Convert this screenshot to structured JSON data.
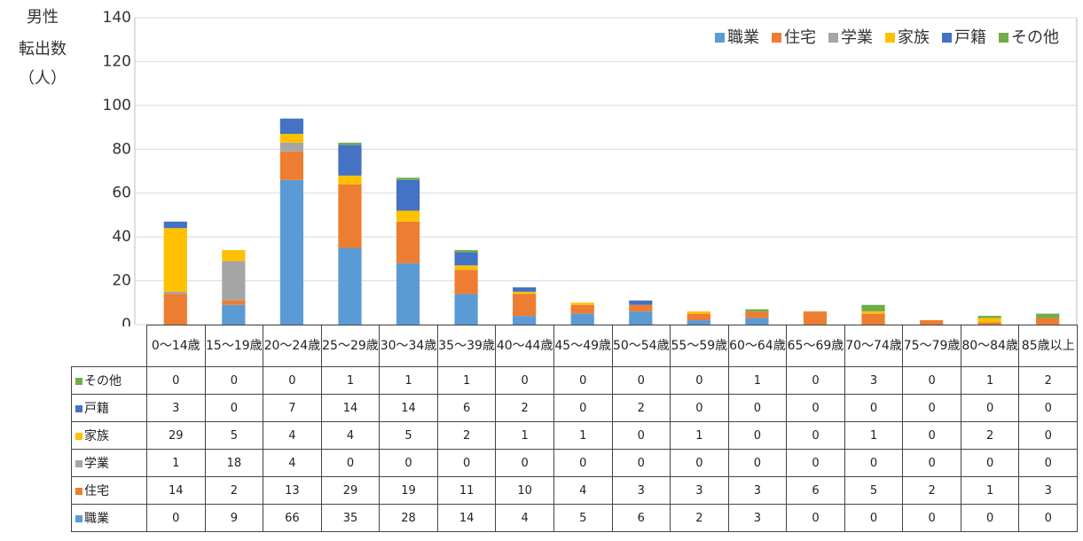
{
  "chart_data": {
    "type": "bar",
    "stacked": true,
    "title": "男性",
    "y_label": [
      "転出数",
      "（人）"
    ],
    "categories": [
      "0～14歳",
      "15～19歳",
      "20～24歳",
      "25～29歳",
      "30～34歳",
      "35～39歳",
      "40～44歳",
      "45～49歳",
      "50～54歳",
      "55～59歳",
      "60～64歳",
      "65～69歳",
      "70～74歳",
      "75～79歳",
      "80～84歳",
      "85歳以上"
    ],
    "series": [
      {
        "name": "職業",
        "color": "#5b9bd5",
        "values": [
          0,
          9,
          66,
          35,
          28,
          14,
          4,
          5,
          6,
          2,
          3,
          0,
          0,
          0,
          0,
          0
        ]
      },
      {
        "name": "住宅",
        "color": "#ed7d31",
        "values": [
          14,
          2,
          13,
          29,
          19,
          11,
          10,
          4,
          3,
          3,
          3,
          6,
          5,
          2,
          1,
          3
        ]
      },
      {
        "name": "学業",
        "color": "#a5a5a5",
        "values": [
          1,
          18,
          4,
          0,
          0,
          0,
          0,
          0,
          0,
          0,
          0,
          0,
          0,
          0,
          0,
          0
        ]
      },
      {
        "name": "家族",
        "color": "#ffc000",
        "values": [
          29,
          5,
          4,
          4,
          5,
          2,
          1,
          1,
          0,
          1,
          0,
          0,
          1,
          0,
          2,
          0
        ]
      },
      {
        "name": "戸籍",
        "color": "#4472c4",
        "values": [
          3,
          0,
          7,
          14,
          14,
          6,
          2,
          0,
          2,
          0,
          0,
          0,
          0,
          0,
          0,
          0
        ]
      },
      {
        "name": "その他",
        "color": "#70ad47",
        "values": [
          0,
          0,
          0,
          1,
          1,
          1,
          0,
          0,
          0,
          0,
          1,
          0,
          3,
          0,
          1,
          2
        ]
      }
    ],
    "ylim": [
      0,
      140
    ],
    "yticks": [
      0,
      20,
      40,
      60,
      80,
      100,
      120,
      140
    ],
    "grid": true,
    "legend": "top-right"
  }
}
